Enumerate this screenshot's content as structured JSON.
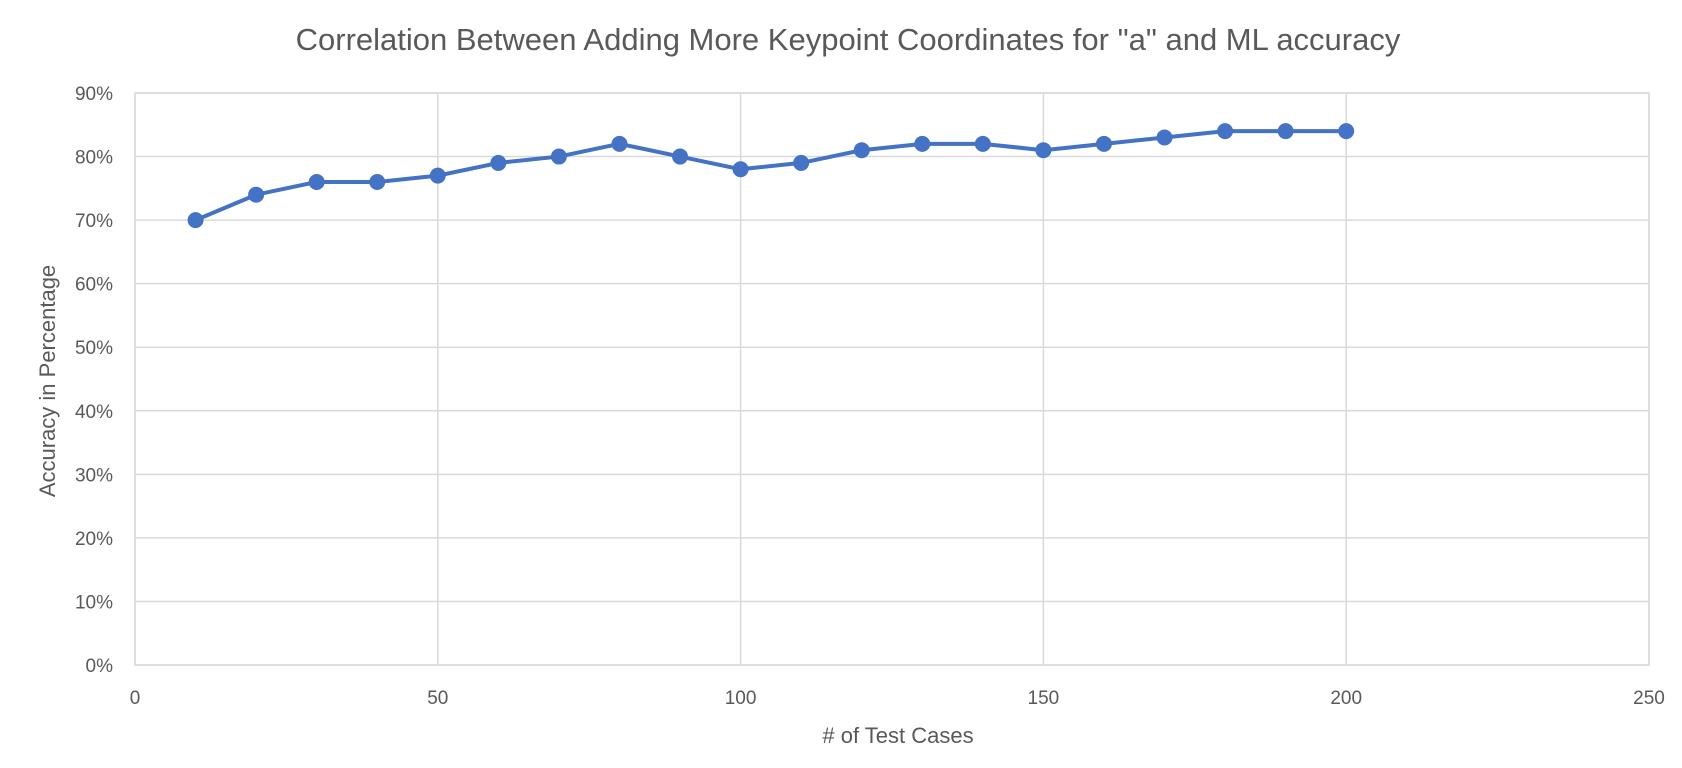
{
  "chart_data": {
    "type": "scatter",
    "title": "Correlation Between Adding More Keypoint Coordinates for \"a\" and ML accuracy",
    "xlabel": "# of Test Cases",
    "ylabel": "Accuracy in Percentage",
    "xlim": [
      0,
      250
    ],
    "ylim": [
      0,
      90
    ],
    "x_ticks": [
      0,
      50,
      100,
      150,
      200,
      250
    ],
    "y_ticks": [
      0,
      10,
      20,
      30,
      40,
      50,
      60,
      70,
      80,
      90
    ],
    "y_tick_suffix": "%",
    "grid": true,
    "lines_connected": true,
    "marker": "circle",
    "legend": "none",
    "series": [
      {
        "color": "#4472C4",
        "x": [
          10,
          20,
          30,
          40,
          50,
          60,
          70,
          80,
          90,
          100,
          110,
          120,
          130,
          140,
          150,
          160,
          170,
          180,
          190,
          200
        ],
        "y": [
          70,
          74,
          76,
          76,
          77,
          79,
          80,
          82,
          80,
          78,
          79,
          81,
          82,
          82,
          81,
          82,
          83,
          84,
          84,
          84
        ]
      }
    ]
  }
}
